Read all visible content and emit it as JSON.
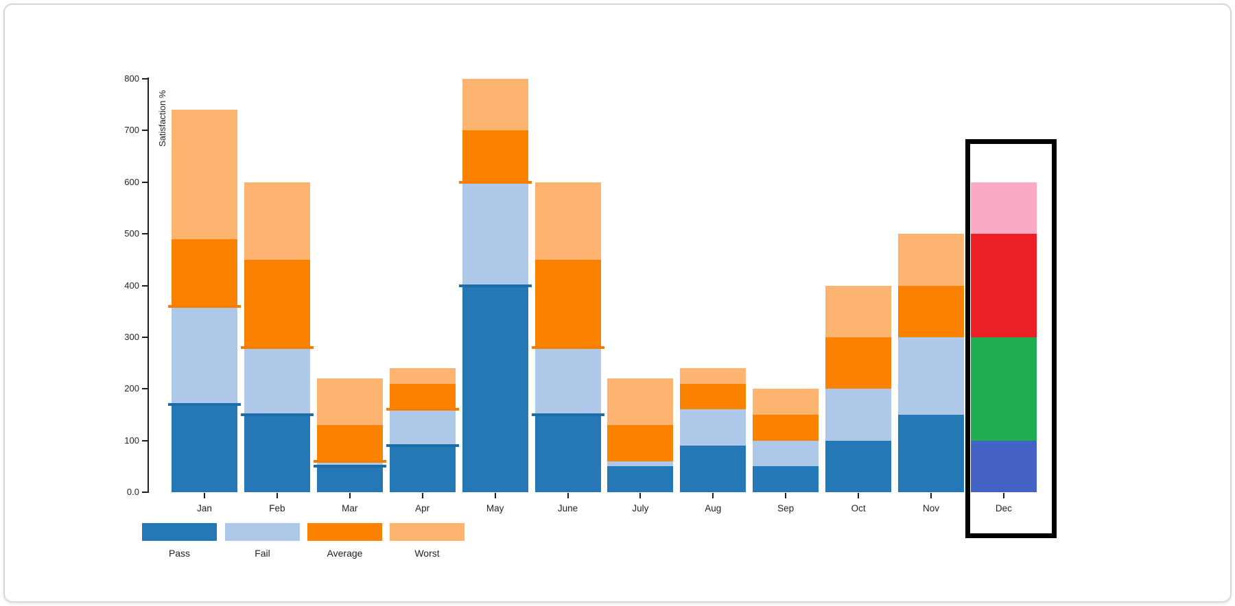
{
  "chart_data": {
    "type": "bar",
    "stacked": true,
    "title": "",
    "xlabel": "",
    "ylabel": "Satisfaction %",
    "ylim": [
      0,
      800
    ],
    "ytick_interval": 100,
    "ytick_labels": [
      "0.0",
      "100",
      "200",
      "300",
      "400",
      "500",
      "600",
      "700",
      "800"
    ],
    "grid": false,
    "legend_position": "bottom",
    "categories": [
      "Jan",
      "Feb",
      "Mar",
      "Apr",
      "May",
      "June",
      "July",
      "Aug",
      "Sep",
      "Oct",
      "Nov",
      "Dec"
    ],
    "series": [
      {
        "name": "Pass",
        "color": "#2478b5",
        "values": [
          170,
          150,
          50,
          90,
          400,
          150,
          50,
          90,
          50,
          100,
          150,
          100
        ]
      },
      {
        "name": "Fail",
        "color": "#aec8e9",
        "values": [
          190,
          130,
          10,
          70,
          200,
          130,
          10,
          70,
          50,
          100,
          150,
          200
        ]
      },
      {
        "name": "Average",
        "color": "#fb8200",
        "values": [
          130,
          170,
          70,
          50,
          100,
          170,
          70,
          50,
          50,
          100,
          100,
          200
        ]
      },
      {
        "name": "Worst",
        "color": "#fdb471",
        "values": [
          250,
          150,
          90,
          30,
          100,
          150,
          90,
          30,
          50,
          100,
          100,
          100
        ]
      }
    ],
    "totals": [
      740,
      600,
      220,
      240,
      800,
      600,
      220,
      240,
      200,
      400,
      500,
      600
    ],
    "legend": {
      "labels": [
        "Pass",
        "Fail",
        "Average",
        "Worst"
      ]
    },
    "special_bar": {
      "category": "Dec",
      "colors": {
        "Pass": "#4562c5",
        "Fail": "#21ac52",
        "Average": "#ee2027",
        "Worst": "#fba9c5"
      },
      "highlighted": true,
      "highlight_color": "#000000"
    },
    "segment_edge_marks": {
      "categories": [
        "Jan",
        "Feb",
        "Mar",
        "Apr",
        "May",
        "June"
      ],
      "pass_top_color": "#1f6da7",
      "average_bottom_color": "#f57d00"
    }
  }
}
